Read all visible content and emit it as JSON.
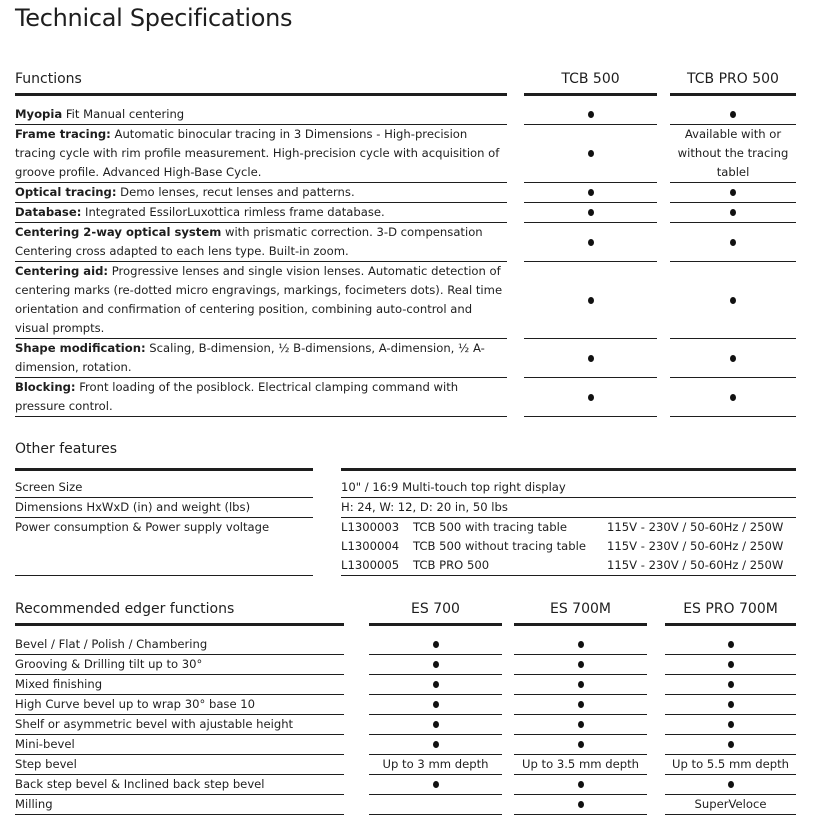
{
  "title": "Technical Specifications",
  "functions": {
    "header": "Functions",
    "columns": [
      "TCB 500",
      "TCB PRO 500"
    ],
    "rows": [
      {
        "bold": "Myopia",
        "text": " Fit Manual centering",
        "values": [
          "●",
          "●"
        ]
      },
      {
        "bold": "Frame tracing:",
        "text": " Automatic binocular tracing in 3 Dimensions - High-precision tracing cycle with rim profile measurement. High-precision cycle with acquisition of groove profile. Advanced High-Base Cycle.",
        "values": [
          "●",
          "Available with or without the tracing tablel"
        ]
      },
      {
        "bold": "Optical tracing:",
        "text": " Demo lenses, recut lenses and patterns.",
        "values": [
          "●",
          "●"
        ]
      },
      {
        "bold": "Database:",
        "text": " Integrated EssilorLuxottica rimless frame database.",
        "values": [
          "●",
          "●"
        ]
      },
      {
        "bold": "Centering 2-way optical system",
        "text": " with prismatic correction. 3-D compensation Centering cross adapted to each lens type. Built-in zoom.",
        "values": [
          "●",
          "●"
        ]
      },
      {
        "bold": "Centering aid:",
        "text": " Progressive lenses and single vision lenses. Automatic detection of centering marks (re-dotted micro engravings, markings, focimeters dots). Real time orientation and confirmation of centering position, combining auto-control and visual prompts.",
        "values": [
          "●",
          "●"
        ]
      },
      {
        "bold": "Shape modification:",
        "text": " Scaling, B-dimension, ½ B-dimensions, A-dimension, ½ A-dimension, rotation.",
        "values": [
          "●",
          "●"
        ]
      },
      {
        "bold": "Blocking:",
        "text": " Front loading of the posiblock. Electrical clamping command with pressure control.",
        "values": [
          "●",
          "●"
        ]
      }
    ]
  },
  "other": {
    "header": "Other features",
    "screen": {
      "label": "Screen Size",
      "value": "10\" / 16:9 Multi-touch top right display"
    },
    "dimensions": {
      "label": "Dimensions HxWxD (in) and weight (lbs)",
      "value": "H: 24, W: 12, D: 20 in, 50 lbs"
    },
    "power": {
      "label": "Power consumption & Power supply voltage",
      "items": [
        {
          "code": "L1300003",
          "model": "TCB 500 with tracing table",
          "spec": "115V - 230V / 50-60Hz / 250W"
        },
        {
          "code": "L1300004",
          "model": "TCB 500 without tracing table",
          "spec": "115V - 230V / 50-60Hz / 250W"
        },
        {
          "code": "L1300005",
          "model": "TCB PRO 500",
          "spec": "115V - 230V / 50-60Hz / 250W"
        }
      ]
    }
  },
  "edger": {
    "header": "Recommended edger functions",
    "columns": [
      "ES 700",
      "ES 700M",
      "ES PRO 700M"
    ],
    "rows": [
      {
        "label": "Bevel / Flat / Polish / Chambering",
        "values": [
          "●",
          "●",
          "●"
        ]
      },
      {
        "label": "Grooving & Drilling tilt up to 30°",
        "values": [
          "●",
          "●",
          "●"
        ]
      },
      {
        "label": "Mixed finishing",
        "values": [
          "●",
          "●",
          "●"
        ]
      },
      {
        "label": "High Curve bevel up to wrap 30° base 10",
        "values": [
          "●",
          "●",
          "●"
        ]
      },
      {
        "label": "Shelf or asymmetric bevel with ajustable height",
        "values": [
          "●",
          "●",
          "●"
        ]
      },
      {
        "label": "Mini-bevel",
        "values": [
          "●",
          "●",
          "●"
        ]
      },
      {
        "label": "Step bevel",
        "values": [
          "Up to 3 mm depth",
          "Up to 3.5 mm depth",
          "Up to 5.5 mm depth"
        ]
      },
      {
        "label": "Back step bevel & Inclined back step bevel",
        "values": [
          "●",
          "●",
          "●"
        ]
      },
      {
        "label": "Milling",
        "values": [
          "",
          "●",
          "SuperVeloce"
        ]
      }
    ]
  }
}
